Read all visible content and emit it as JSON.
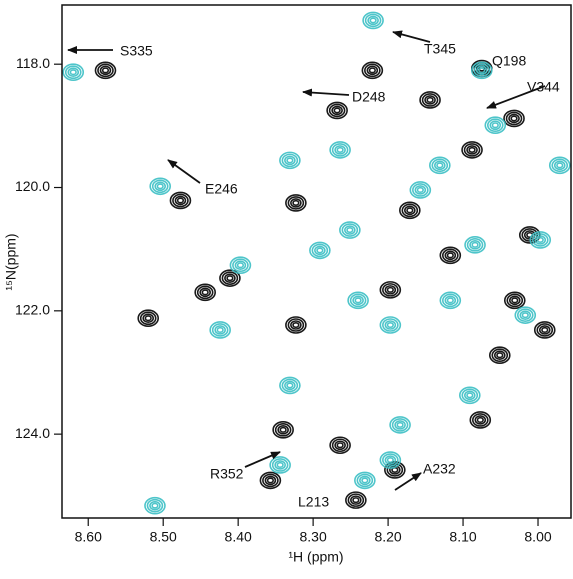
{
  "chart_data": {
    "type": "contour",
    "xlabel": "¹H (ppm)",
    "ylabel": "¹⁵N(ppm)",
    "xlim": [
      8.635,
      7.956
    ],
    "ylim": [
      117.04,
      125.36
    ],
    "xticks": [
      {
        "value": 8.6,
        "label": "8.60"
      },
      {
        "value": 8.5,
        "label": "8.50"
      },
      {
        "value": 8.4,
        "label": "8.40"
      },
      {
        "value": 8.3,
        "label": "8.30"
      },
      {
        "value": 8.2,
        "label": "8.20"
      },
      {
        "value": 8.1,
        "label": "8.10"
      },
      {
        "value": 8.0,
        "label": "8.00"
      }
    ],
    "yticks": [
      {
        "value": 118,
        "label": "118.0"
      },
      {
        "value": 120,
        "label": "120.0"
      },
      {
        "value": 122,
        "label": "122.0"
      },
      {
        "value": 124,
        "label": "124.0"
      }
    ],
    "series": [
      {
        "color": "#1a1a1a",
        "x": [
          8.577,
          8.221,
          8.144,
          8.268,
          8.032,
          8.088,
          8.477,
          8.323,
          8.52,
          8.323,
          8.444,
          8.34,
          8.357,
          8.264,
          8.243,
          8.191,
          8.051,
          8.077,
          8.171,
          8.117,
          8.011,
          8.411,
          8.197,
          7.991,
          8.031,
          8.075
        ],
        "values": [
          118.1,
          118.1,
          118.58,
          118.75,
          118.88,
          119.39,
          120.21,
          120.25,
          122.12,
          122.23,
          121.7,
          123.93,
          124.75,
          124.18,
          125.07,
          124.58,
          122.72,
          123.77,
          120.37,
          121.1,
          120.77,
          121.47,
          121.66,
          122.31,
          121.83,
          118.07
        ]
      },
      {
        "color": "#3bbfc4",
        "x": [
          8.62,
          8.075,
          8.22,
          8.057,
          8.504,
          8.264,
          8.331,
          8.131,
          8.157,
          7.971,
          8.251,
          8.291,
          8.397,
          8.424,
          8.24,
          8.117,
          8.197,
          8.331,
          8.344,
          8.231,
          8.184,
          8.197,
          8.091,
          8.017,
          7.997,
          8.511,
          8.084
        ],
        "values": [
          118.13,
          118.1,
          117.29,
          118.99,
          119.98,
          119.39,
          119.56,
          119.64,
          120.04,
          119.64,
          120.69,
          121.02,
          121.26,
          122.31,
          121.83,
          121.83,
          122.23,
          123.21,
          124.5,
          124.75,
          123.85,
          124.42,
          123.37,
          122.07,
          120.85,
          125.16,
          120.93
        ]
      }
    ],
    "annotations": [
      "S335",
      "T345",
      "Q198",
      "D248",
      "V344",
      "E246",
      "R352",
      "A232",
      "L213"
    ]
  }
}
